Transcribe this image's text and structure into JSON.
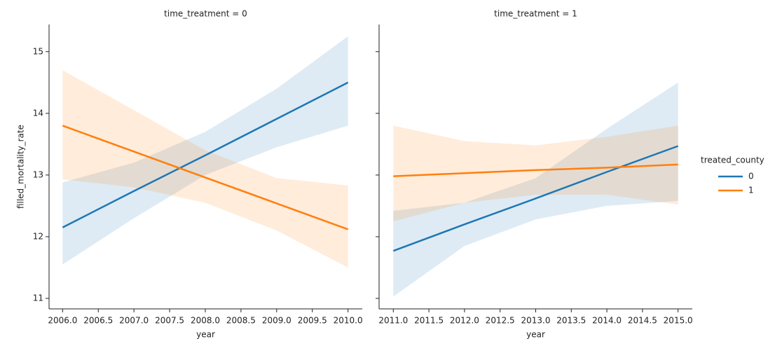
{
  "chart_data": [
    {
      "type": "line",
      "title": "time_treatment = 0",
      "xlabel": "year",
      "ylabel": "filled_mortality_rate",
      "legend_title": "treated_county",
      "legend": "right",
      "x": [
        2006,
        2007,
        2008,
        2009,
        2010
      ],
      "xlim": [
        2005.81,
        2010.2
      ],
      "ylim": [
        10.83,
        15.44
      ],
      "xticks": [
        {
          "value": 2006,
          "label": "2006.0"
        },
        {
          "value": 2006.5,
          "label": "2006.5"
        },
        {
          "value": 2007,
          "label": "2007.0"
        },
        {
          "value": 2007.5,
          "label": "2007.5"
        },
        {
          "value": 2008,
          "label": "2008.0"
        },
        {
          "value": 2008.5,
          "label": "2008.5"
        },
        {
          "value": 2009,
          "label": "2009.0"
        },
        {
          "value": 2009.5,
          "label": "2009.5"
        },
        {
          "value": 2010,
          "label": "2010.0"
        }
      ],
      "yticks": [
        11,
        12,
        13,
        14,
        15
      ],
      "series": [
        {
          "name": "0",
          "color": "#1f77b4",
          "values": [
            12.15,
            12.74,
            13.32,
            13.91,
            14.5
          ],
          "lower": [
            11.55,
            12.3,
            13.0,
            13.45,
            13.8
          ],
          "upper": [
            12.88,
            13.2,
            13.7,
            14.4,
            15.25
          ]
        },
        {
          "name": "1",
          "color": "#ff7f0e",
          "values": [
            13.8,
            13.38,
            12.96,
            12.54,
            12.12
          ],
          "lower": [
            12.93,
            12.8,
            12.55,
            12.1,
            11.5
          ],
          "upper": [
            14.7,
            14.05,
            13.4,
            12.95,
            12.83
          ]
        }
      ]
    },
    {
      "type": "line",
      "title": "time_treatment = 1",
      "xlabel": "year",
      "x": [
        2011,
        2012,
        2013,
        2014,
        2015
      ],
      "xlim": [
        2010.8,
        2015.2
      ],
      "ylim": [
        10.83,
        15.44
      ],
      "xticks": [
        {
          "value": 2011,
          "label": "2011.0"
        },
        {
          "value": 2011.5,
          "label": "2011.5"
        },
        {
          "value": 2012,
          "label": "2012.0"
        },
        {
          "value": 2012.5,
          "label": "2012.5"
        },
        {
          "value": 2013,
          "label": "2013.0"
        },
        {
          "value": 2013.5,
          "label": "2013.5"
        },
        {
          "value": 2014,
          "label": "2014.0"
        },
        {
          "value": 2014.5,
          "label": "2014.5"
        },
        {
          "value": 2015,
          "label": "2015.0"
        }
      ],
      "yticks": [
        11,
        12,
        13,
        14,
        15
      ],
      "series": [
        {
          "name": "0",
          "color": "#1f77b4",
          "values": [
            11.77,
            12.2,
            12.62,
            13.05,
            13.47
          ],
          "lower": [
            11.03,
            11.85,
            12.28,
            12.5,
            12.58
          ],
          "upper": [
            12.42,
            12.55,
            12.95,
            13.75,
            14.5
          ]
        },
        {
          "name": "1",
          "color": "#ff7f0e",
          "values": [
            12.98,
            13.03,
            13.08,
            13.12,
            13.17
          ],
          "lower": [
            12.25,
            12.55,
            12.68,
            12.68,
            12.52
          ],
          "upper": [
            13.8,
            13.55,
            13.48,
            13.62,
            13.8
          ]
        }
      ]
    }
  ]
}
